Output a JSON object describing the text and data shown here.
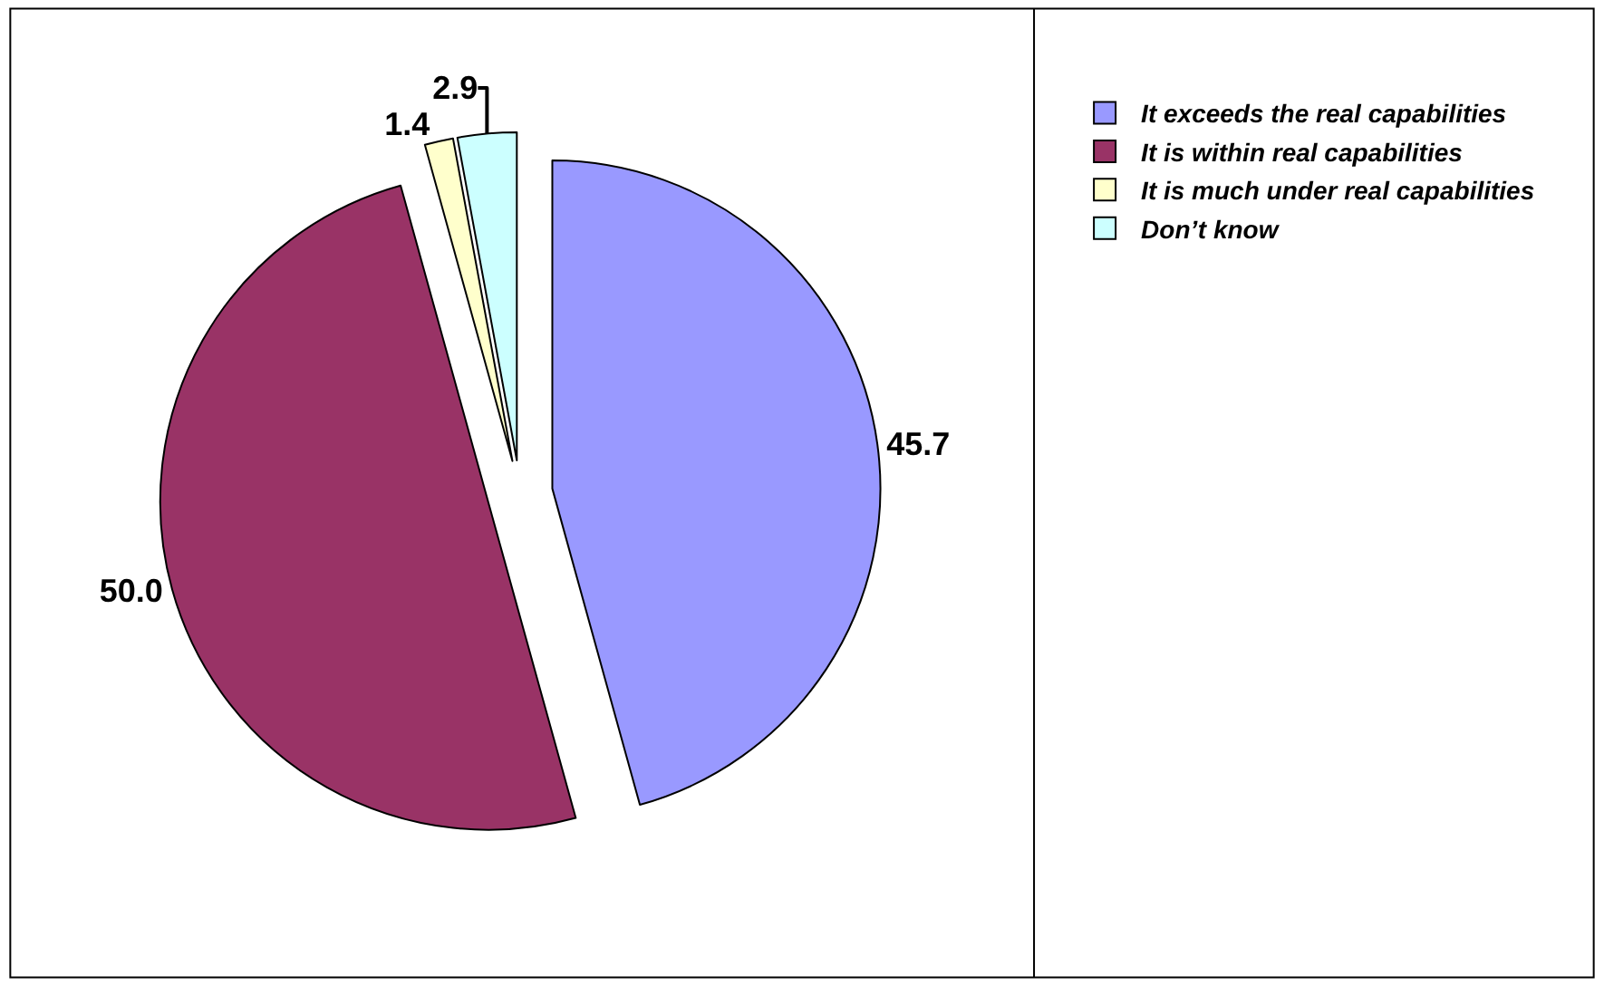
{
  "chart_data": {
    "type": "pie",
    "categories": [
      "It exceeds the real capabilities",
      "It is within real capabilities",
      "It is much under real capabilities",
      "Don’t know"
    ],
    "values": [
      45.7,
      50.0,
      1.4,
      2.9
    ],
    "colors": [
      "#9999ff",
      "#993366",
      "#ffffcc",
      "#ccffff"
    ],
    "value_labels": [
      "45.7",
      "50.0",
      "1.4",
      "2.9"
    ],
    "legend": "right"
  }
}
